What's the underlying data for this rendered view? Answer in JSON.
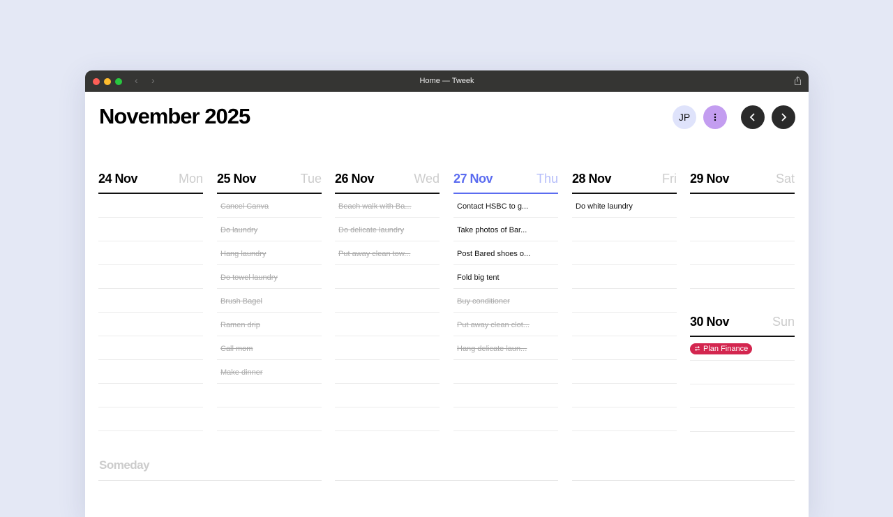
{
  "window": {
    "title": "Home — Tweek"
  },
  "header": {
    "title": "November 2025",
    "avatar": "JP",
    "colors": {
      "avatar_bg": "#dfe3fb",
      "menu_bg": "#c39df0",
      "nav_bg": "#2a2a2a",
      "today": "#5b6cf0",
      "pill": "#d3264f"
    }
  },
  "days": [
    {
      "date": "24 Nov",
      "weekday": "Mon",
      "tasks": []
    },
    {
      "date": "25 Nov",
      "weekday": "Tue",
      "tasks": [
        {
          "text": "Cancel Canva",
          "done": true
        },
        {
          "text": "Do laundry",
          "done": true
        },
        {
          "text": "Hang laundry",
          "done": true
        },
        {
          "text": "Do towel laundry",
          "done": true
        },
        {
          "text": "Brush Bagel",
          "done": true
        },
        {
          "text": "Ramen drip",
          "done": true
        },
        {
          "text": "Call mom",
          "done": true
        },
        {
          "text": "Make dinner",
          "done": true
        }
      ]
    },
    {
      "date": "26 Nov",
      "weekday": "Wed",
      "tasks": [
        {
          "text": "Beach walk with Ba...",
          "done": true
        },
        {
          "text": "Do delicate laundry",
          "done": true
        },
        {
          "text": "Put away clean tow...",
          "done": true
        }
      ]
    },
    {
      "date": "27 Nov",
      "weekday": "Thu",
      "today": true,
      "tasks": [
        {
          "text": "Contact HSBC to g...",
          "done": false
        },
        {
          "text": "Take photos of Bar...",
          "done": false
        },
        {
          "text": "Post Bared shoes o...",
          "done": false
        },
        {
          "text": "Fold big tent",
          "done": false
        },
        {
          "text": "Buy conditioner",
          "done": true
        },
        {
          "text": "Put away clean clot...",
          "done": true
        },
        {
          "text": "Hang delicate laun...",
          "done": true
        }
      ]
    },
    {
      "date": "28 Nov",
      "weekday": "Fri",
      "tasks": [
        {
          "text": "Do white laundry",
          "done": false
        }
      ]
    },
    {
      "date": "29 Nov",
      "weekday": "Sat",
      "tasks": []
    },
    {
      "date": "30 Nov",
      "weekday": "Sun",
      "tasks": [
        {
          "text": "Plan Finance",
          "recurring": true,
          "icon": "repeat-icon"
        }
      ]
    }
  ],
  "someday": {
    "label": "Someday"
  }
}
